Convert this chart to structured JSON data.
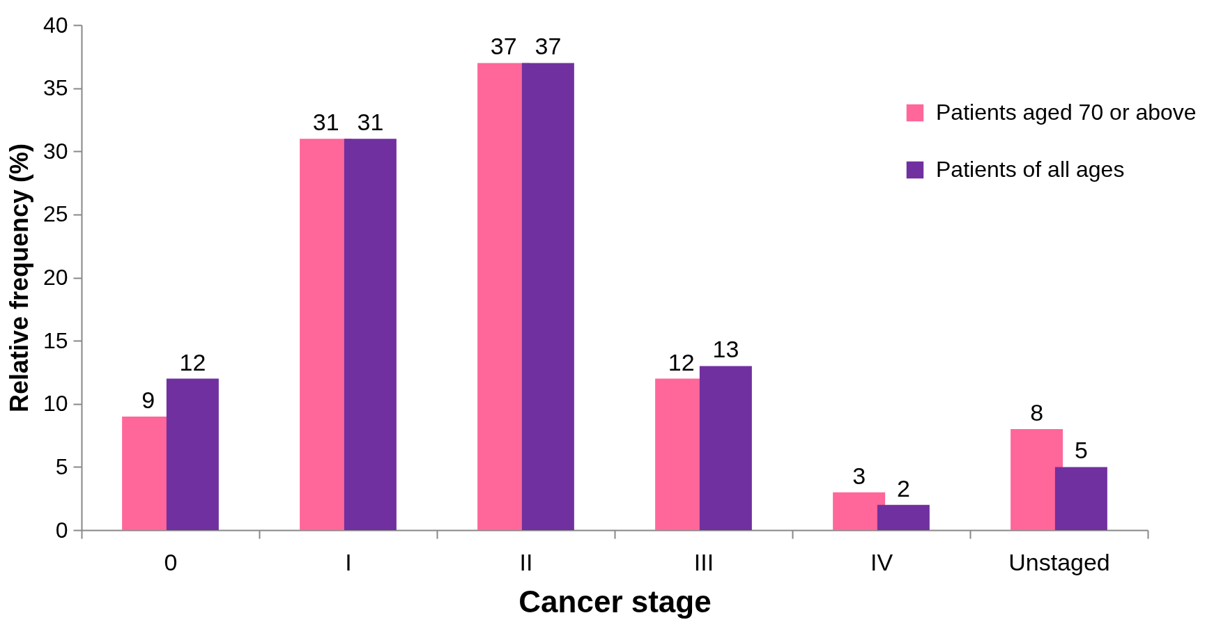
{
  "chart_data": {
    "type": "bar",
    "xlabel": "Cancer stage",
    "ylabel": "Relative frequency (%)",
    "categories": [
      "0",
      "I",
      "II",
      "III",
      "IV",
      "Unstaged"
    ],
    "series": [
      {
        "name": "Patients aged 70 or above",
        "color": "#ff6699",
        "values": [
          9,
          31,
          37,
          12,
          3,
          8
        ]
      },
      {
        "name": "Patients of all ages",
        "color": "#7030a0",
        "values": [
          12,
          31,
          37,
          13,
          2,
          5
        ]
      }
    ],
    "ylim": [
      0,
      40
    ],
    "yticks": [
      0,
      5,
      10,
      15,
      20,
      25,
      30,
      35,
      40
    ],
    "grid": false,
    "legend": "top right",
    "data_labels": true
  }
}
